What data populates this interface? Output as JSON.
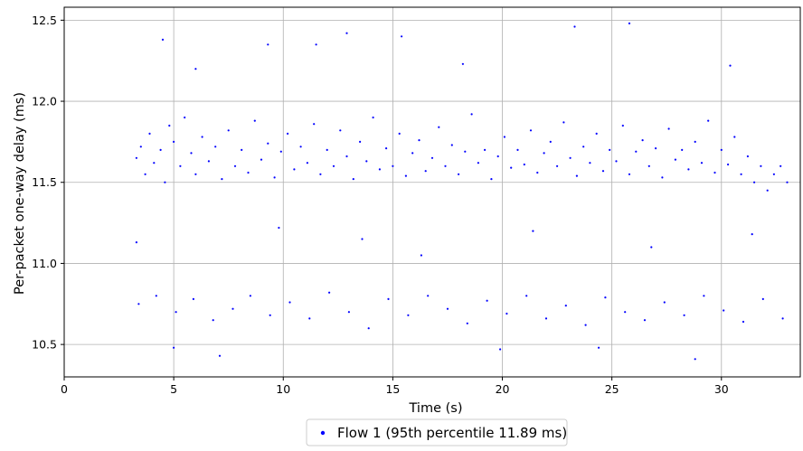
{
  "chart_data": {
    "type": "scatter",
    "title": "",
    "xlabel": "Time (s)",
    "ylabel": "Per-packet one-way delay (ms)",
    "xlim": [
      0,
      33.6
    ],
    "ylim": [
      10.3,
      12.58
    ],
    "x_ticks": [
      0,
      5,
      10,
      15,
      20,
      25,
      30
    ],
    "y_ticks": [
      10.5,
      11.0,
      11.5,
      12.0,
      12.5
    ],
    "x_tick_labels": [
      "0",
      "5",
      "10",
      "15",
      "20",
      "25",
      "30"
    ],
    "y_tick_labels": [
      "10.5",
      "11.0",
      "11.5",
      "12.0",
      "12.5"
    ],
    "grid": true,
    "legend_position": "bottom-center",
    "series": [
      {
        "name": "Flow 1 (95th percentile 11.89 ms)",
        "color": "#0000ff",
        "marker": "dot",
        "x_range": [
          3.2,
          33.0
        ],
        "points": [
          [
            3.3,
            11.65
          ],
          [
            3.5,
            11.72
          ],
          [
            3.7,
            11.55
          ],
          [
            3.9,
            11.8
          ],
          [
            4.1,
            11.62
          ],
          [
            4.4,
            11.7
          ],
          [
            4.6,
            11.5
          ],
          [
            4.8,
            11.85
          ],
          [
            5.0,
            11.75
          ],
          [
            5.3,
            11.6
          ],
          [
            5.5,
            11.9
          ],
          [
            5.8,
            11.68
          ],
          [
            6.0,
            11.55
          ],
          [
            6.3,
            11.78
          ],
          [
            6.6,
            11.63
          ],
          [
            6.9,
            11.72
          ],
          [
            7.2,
            11.52
          ],
          [
            7.5,
            11.82
          ],
          [
            7.8,
            11.6
          ],
          [
            8.1,
            11.7
          ],
          [
            8.4,
            11.56
          ],
          [
            8.7,
            11.88
          ],
          [
            9.0,
            11.64
          ],
          [
            9.3,
            11.74
          ],
          [
            9.6,
            11.53
          ],
          [
            9.9,
            11.69
          ],
          [
            10.2,
            11.8
          ],
          [
            10.5,
            11.58
          ],
          [
            10.8,
            11.72
          ],
          [
            11.1,
            11.62
          ],
          [
            11.4,
            11.86
          ],
          [
            11.7,
            11.55
          ],
          [
            12.0,
            11.7
          ],
          [
            12.3,
            11.6
          ],
          [
            12.6,
            11.82
          ],
          [
            12.9,
            11.66
          ],
          [
            13.2,
            11.52
          ],
          [
            13.5,
            11.75
          ],
          [
            13.8,
            11.63
          ],
          [
            14.1,
            11.9
          ],
          [
            14.4,
            11.58
          ],
          [
            14.7,
            11.71
          ],
          [
            15.0,
            11.6
          ],
          [
            15.3,
            11.8
          ],
          [
            15.6,
            11.54
          ],
          [
            15.9,
            11.68
          ],
          [
            16.2,
            11.76
          ],
          [
            16.5,
            11.57
          ],
          [
            16.8,
            11.65
          ],
          [
            17.1,
            11.84
          ],
          [
            17.4,
            11.6
          ],
          [
            17.7,
            11.73
          ],
          [
            18.0,
            11.55
          ],
          [
            18.3,
            11.69
          ],
          [
            18.6,
            11.92
          ],
          [
            18.9,
            11.62
          ],
          [
            19.2,
            11.7
          ],
          [
            19.5,
            11.52
          ],
          [
            19.8,
            11.66
          ],
          [
            20.1,
            11.78
          ],
          [
            20.4,
            11.59
          ],
          [
            20.7,
            11.7
          ],
          [
            21.0,
            11.61
          ],
          [
            21.3,
            11.82
          ],
          [
            21.6,
            11.56
          ],
          [
            21.9,
            11.68
          ],
          [
            22.2,
            11.75
          ],
          [
            22.5,
            11.6
          ],
          [
            22.8,
            11.87
          ],
          [
            23.1,
            11.65
          ],
          [
            23.4,
            11.54
          ],
          [
            23.7,
            11.72
          ],
          [
            24.0,
            11.62
          ],
          [
            24.3,
            11.8
          ],
          [
            24.6,
            11.57
          ],
          [
            24.9,
            11.7
          ],
          [
            25.2,
            11.63
          ],
          [
            25.5,
            11.85
          ],
          [
            25.8,
            11.55
          ],
          [
            26.1,
            11.69
          ],
          [
            26.4,
            11.76
          ],
          [
            26.7,
            11.6
          ],
          [
            27.0,
            11.71
          ],
          [
            27.3,
            11.53
          ],
          [
            27.6,
            11.83
          ],
          [
            27.9,
            11.64
          ],
          [
            28.2,
            11.7
          ],
          [
            28.5,
            11.58
          ],
          [
            28.8,
            11.75
          ],
          [
            29.1,
            11.62
          ],
          [
            29.4,
            11.88
          ],
          [
            29.7,
            11.56
          ],
          [
            30.0,
            11.7
          ],
          [
            30.3,
            11.61
          ],
          [
            30.6,
            11.78
          ],
          [
            30.9,
            11.55
          ],
          [
            31.2,
            11.66
          ],
          [
            31.5,
            11.5
          ],
          [
            31.8,
            11.6
          ],
          [
            32.1,
            11.45
          ],
          [
            32.4,
            11.55
          ],
          [
            32.7,
            11.6
          ],
          [
            33.0,
            11.5
          ],
          [
            3.4,
            10.75
          ],
          [
            4.2,
            10.8
          ],
          [
            5.1,
            10.7
          ],
          [
            5.9,
            10.78
          ],
          [
            6.8,
            10.65
          ],
          [
            7.7,
            10.72
          ],
          [
            8.5,
            10.8
          ],
          [
            9.4,
            10.68
          ],
          [
            10.3,
            10.76
          ],
          [
            11.2,
            10.66
          ],
          [
            12.1,
            10.82
          ],
          [
            13.0,
            10.7
          ],
          [
            13.9,
            10.6
          ],
          [
            14.8,
            10.78
          ],
          [
            15.7,
            10.68
          ],
          [
            16.6,
            10.8
          ],
          [
            17.5,
            10.72
          ],
          [
            18.4,
            10.63
          ],
          [
            19.3,
            10.77
          ],
          [
            20.2,
            10.69
          ],
          [
            21.1,
            10.8
          ],
          [
            22.0,
            10.66
          ],
          [
            22.9,
            10.74
          ],
          [
            23.8,
            10.62
          ],
          [
            24.7,
            10.79
          ],
          [
            25.6,
            10.7
          ],
          [
            26.5,
            10.65
          ],
          [
            27.4,
            10.76
          ],
          [
            28.3,
            10.68
          ],
          [
            29.2,
            10.8
          ],
          [
            30.1,
            10.71
          ],
          [
            31.0,
            10.64
          ],
          [
            31.9,
            10.78
          ],
          [
            32.8,
            10.66
          ],
          [
            4.5,
            12.38
          ],
          [
            9.3,
            12.35
          ],
          [
            11.5,
            12.35
          ],
          [
            12.9,
            12.42
          ],
          [
            15.4,
            12.4
          ],
          [
            23.3,
            12.46
          ],
          [
            25.8,
            12.48
          ],
          [
            30.4,
            12.22
          ],
          [
            6.0,
            12.2
          ],
          [
            18.2,
            12.23
          ],
          [
            3.3,
            11.13
          ],
          [
            7.1,
            10.43
          ],
          [
            28.8,
            10.41
          ],
          [
            19.9,
            10.47
          ],
          [
            24.4,
            10.48
          ],
          [
            5.0,
            10.48
          ],
          [
            13.6,
            11.15
          ],
          [
            21.4,
            11.2
          ],
          [
            26.8,
            11.1
          ],
          [
            9.8,
            11.22
          ],
          [
            16.3,
            11.05
          ],
          [
            31.4,
            11.18
          ]
        ]
      }
    ]
  }
}
